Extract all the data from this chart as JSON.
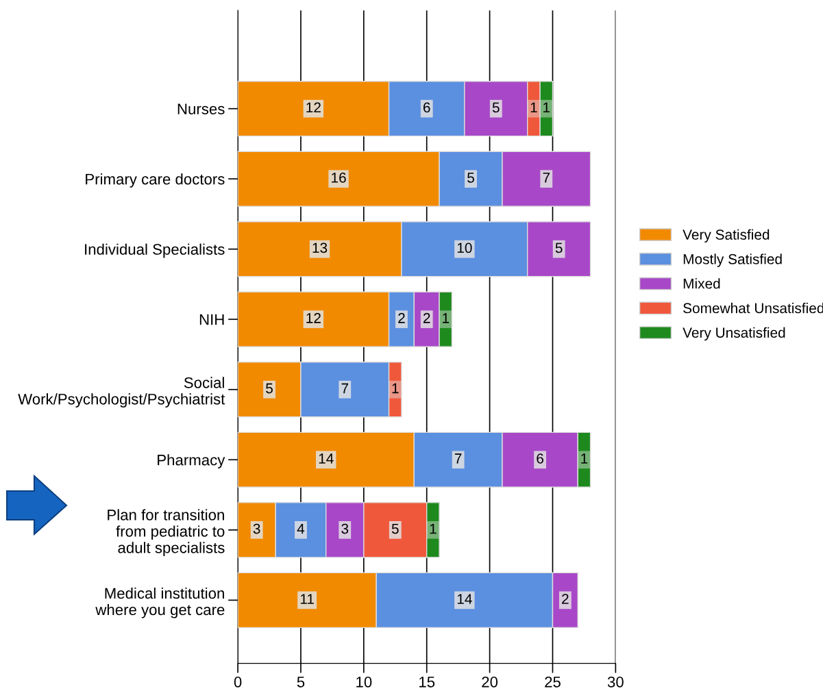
{
  "chart_data": {
    "type": "bar",
    "orientation": "horizontal",
    "stacked": true,
    "data_labels": true,
    "grid": "x",
    "legend": "right",
    "categories": [
      "Nurses",
      "Primary care doctors",
      "Individual Specialists",
      "NIH",
      "Social\nWork/Psychologist/Psychiatrist",
      "Pharmacy",
      "Plan for transition\nfrom pediatric to\nadult specialists",
      "Medical institution\nwhere you get care"
    ],
    "series": [
      {
        "name": "Very Satisfied",
        "color": "#f28a00",
        "values": [
          12,
          16,
          13,
          12,
          5,
          14,
          3,
          11
        ]
      },
      {
        "name": "Mostly Satisfied",
        "color": "#5b8fe0",
        "values": [
          6,
          5,
          10,
          2,
          7,
          7,
          4,
          14
        ]
      },
      {
        "name": "Mixed",
        "color": "#a848c8",
        "values": [
          5,
          7,
          5,
          2,
          null,
          6,
          3,
          2
        ]
      },
      {
        "name": "Somewhat Unsatisfied",
        "color": "#f0583c",
        "values": [
          1,
          null,
          null,
          null,
          1,
          null,
          5,
          null
        ]
      },
      {
        "name": "Very Unsatisfied",
        "color": "#1e8a1e",
        "values": [
          1,
          null,
          null,
          1,
          null,
          1,
          1,
          null
        ]
      }
    ],
    "xlim": [
      0,
      30
    ],
    "xticks": [
      0,
      5,
      10,
      15,
      20,
      25,
      30
    ]
  }
}
